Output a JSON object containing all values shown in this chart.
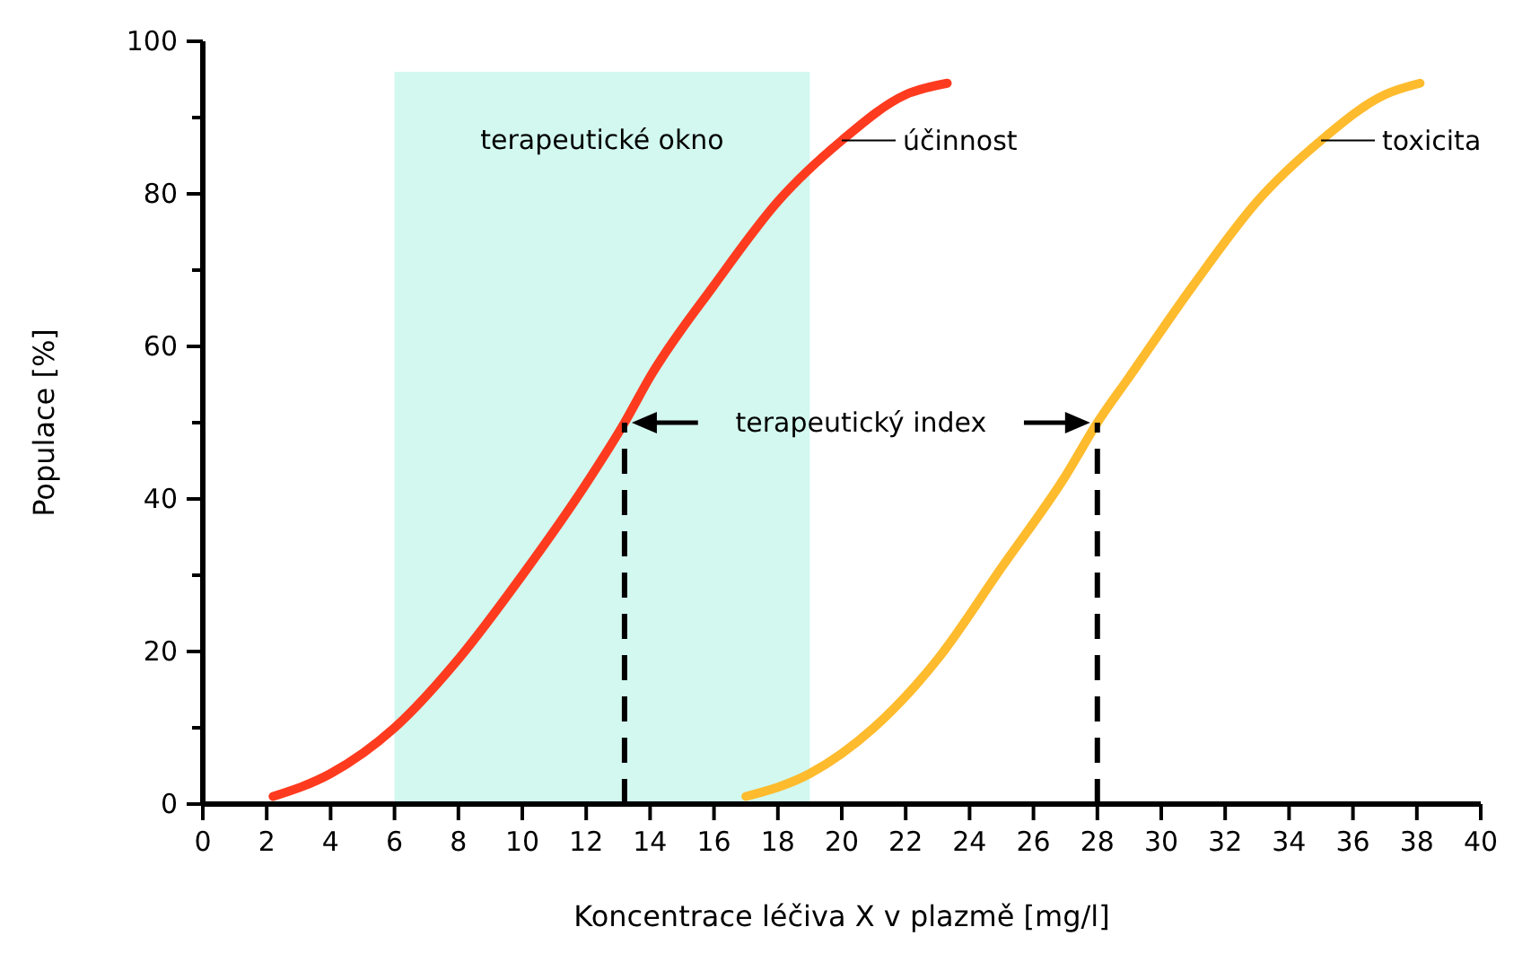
{
  "chart_data": {
    "type": "line",
    "xlabel": "Koncentrace léčiva X v plazmě [mg/l]",
    "ylabel": "Populace [%]",
    "xlim": [
      0,
      40
    ],
    "xticks": [
      0,
      2,
      4,
      6,
      8,
      10,
      12,
      14,
      16,
      18,
      20,
      22,
      24,
      26,
      28,
      30,
      32,
      34,
      36,
      38,
      40
    ],
    "ylim": [
      0,
      100
    ],
    "yticks": [
      0,
      {
        "value": 10,
        "label": null
      },
      20,
      {
        "value": 30,
        "label": null
      },
      40,
      {
        "value": 50,
        "label": null
      },
      60,
      {
        "value": 70,
        "label": null
      },
      80,
      {
        "value": 90,
        "label": null
      },
      100
    ],
    "grid": false,
    "marker": "none",
    "series": [
      {
        "name": "účinnost",
        "color": "#ff3b1f",
        "x": [
          2.2,
          4,
          6,
          8,
          10,
          12,
          13.2,
          14,
          16,
          18,
          20,
          22,
          23.3
        ],
        "values": [
          1,
          4,
          10,
          19,
          30,
          42,
          50,
          56,
          68,
          79,
          87,
          93,
          94.5
        ]
      },
      {
        "name": "toxicita",
        "color": "#fdbb2d",
        "x": [
          17,
          19,
          21,
          23,
          25,
          27,
          28,
          29,
          31,
          33,
          35,
          37,
          38.1
        ],
        "values": [
          1,
          4,
          10,
          19,
          31,
          43,
          50,
          56,
          68,
          79,
          87,
          93,
          94.5
        ]
      },
      {
        "color": "#000000",
        "line_style": "dashed",
        "x": [
          13.2,
          13.2
        ],
        "values": [
          0,
          50
        ]
      },
      {
        "color": "#000000",
        "line_style": "dashed",
        "x": [
          28,
          28
        ],
        "values": [
          0,
          50
        ]
      }
    ],
    "bands": [
      {
        "axis": "x",
        "from": 6,
        "to": 19,
        "label": "terapeutické okno",
        "color": "#d2f8ef"
      }
    ],
    "annotations": [
      "terapeutický index"
    ]
  }
}
